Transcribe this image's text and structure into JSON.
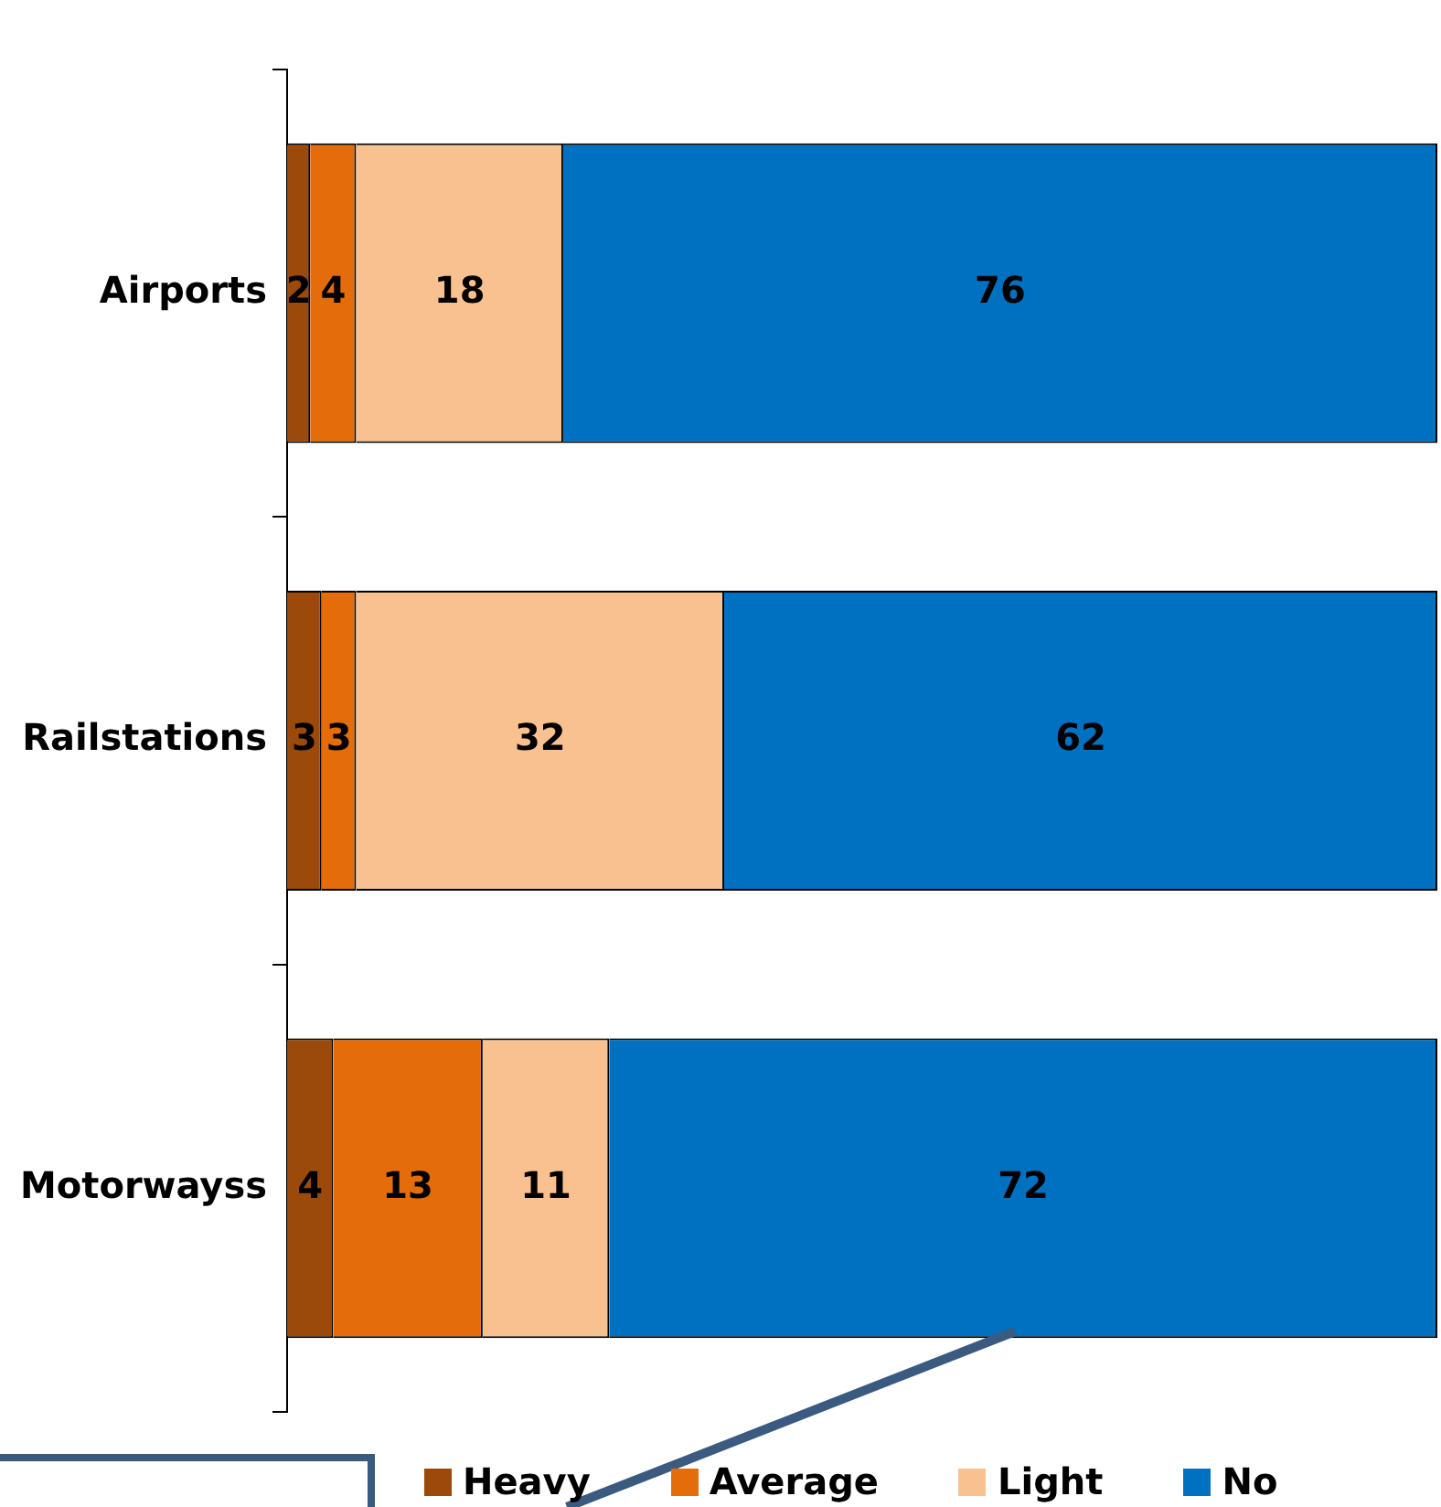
{
  "chart_data": {
    "type": "bar",
    "orientation": "horizontal",
    "stacked": true,
    "categories": [
      "Airports",
      "Railstations",
      "Motorwayss"
    ],
    "series": [
      {
        "name": "Heavy",
        "color": "#9c4a0c",
        "values": [
          2,
          3,
          4
        ]
      },
      {
        "name": "Average",
        "color": "#e46c0a",
        "values": [
          4,
          3,
          13
        ]
      },
      {
        "name": "Light",
        "color": "#f9c090",
        "values": [
          18,
          32,
          11
        ]
      },
      {
        "name": "No",
        "color": "#0070c0",
        "values": [
          76,
          62,
          72
        ]
      }
    ],
    "xlim": [
      0,
      100
    ],
    "tick_labels": "y",
    "data_labels": true,
    "legend": "bottom",
    "grid": false
  }
}
